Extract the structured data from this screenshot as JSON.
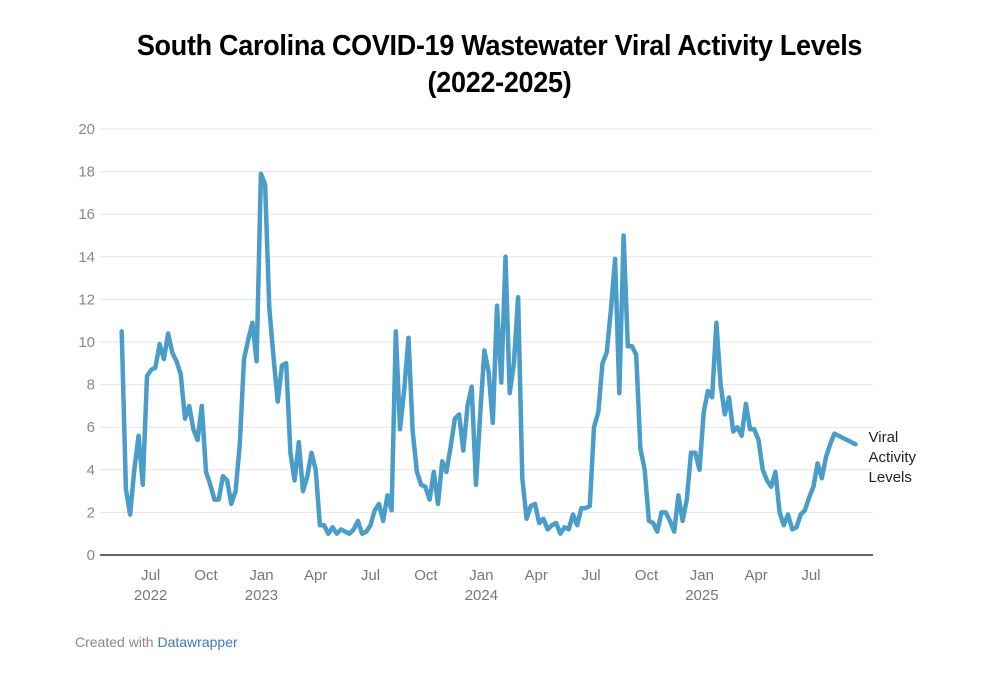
{
  "chart_data": {
    "type": "line",
    "title": "South Carolina COVID-19  Wastewater Viral Activity Levels",
    "subtitle": "(2022-2025)",
    "xlabel": "",
    "ylabel": "",
    "ylim": [
      0,
      20
    ],
    "yticks": [
      0,
      2,
      4,
      6,
      8,
      10,
      12,
      14,
      16,
      18,
      20
    ],
    "grid": true,
    "legend": "right, direct label at line end",
    "line_color": "#4a9cc9",
    "xticks": [
      {
        "date": "2022-07-01",
        "month": "Jul",
        "year": "2022"
      },
      {
        "date": "2022-10-01",
        "month": "Oct",
        "year": ""
      },
      {
        "date": "2023-01-01",
        "month": "Jan",
        "year": "2023"
      },
      {
        "date": "2023-04-01",
        "month": "Apr",
        "year": ""
      },
      {
        "date": "2023-07-01",
        "month": "Jul",
        "year": ""
      },
      {
        "date": "2023-10-01",
        "month": "Oct",
        "year": ""
      },
      {
        "date": "2024-01-01",
        "month": "Jan",
        "year": "2024"
      },
      {
        "date": "2024-04-01",
        "month": "Apr",
        "year": ""
      },
      {
        "date": "2024-07-01",
        "month": "Jul",
        "year": ""
      },
      {
        "date": "2024-10-01",
        "month": "Oct",
        "year": ""
      },
      {
        "date": "2025-01-01",
        "month": "Jan",
        "year": "2025"
      },
      {
        "date": "2025-04-01",
        "month": "Apr",
        "year": ""
      },
      {
        "date": "2025-07-01",
        "month": "Jul",
        "year": ""
      }
    ],
    "xrange": [
      "2022-04-08",
      "2025-10-12"
    ],
    "series": [
      {
        "name": "Viral Activity Levels",
        "label_lines": [
          "Viral",
          "Activity",
          "Levels"
        ],
        "points": [
          [
            "2022-05-14",
            10.5
          ],
          [
            "2022-05-21",
            3.1
          ],
          [
            "2022-05-28",
            1.9
          ],
          [
            "2022-06-04",
            4.0
          ],
          [
            "2022-06-11",
            5.6
          ],
          [
            "2022-06-18",
            3.3
          ],
          [
            "2022-06-25",
            8.4
          ],
          [
            "2022-07-02",
            8.7
          ],
          [
            "2022-07-09",
            8.8
          ],
          [
            "2022-07-16",
            9.9
          ],
          [
            "2022-07-23",
            9.2
          ],
          [
            "2022-07-30",
            10.4
          ],
          [
            "2022-08-06",
            9.5
          ],
          [
            "2022-08-13",
            9.1
          ],
          [
            "2022-08-20",
            8.5
          ],
          [
            "2022-08-27",
            6.4
          ],
          [
            "2022-09-03",
            7.0
          ],
          [
            "2022-09-10",
            5.9
          ],
          [
            "2022-09-17",
            5.4
          ],
          [
            "2022-09-24",
            7.0
          ],
          [
            "2022-10-01",
            3.9
          ],
          [
            "2022-10-08",
            3.3
          ],
          [
            "2022-10-15",
            2.6
          ],
          [
            "2022-10-22",
            2.6
          ],
          [
            "2022-10-29",
            3.7
          ],
          [
            "2022-11-05",
            3.5
          ],
          [
            "2022-11-12",
            2.4
          ],
          [
            "2022-11-19",
            3.0
          ],
          [
            "2022-11-26",
            5.2
          ],
          [
            "2022-12-03",
            9.2
          ],
          [
            "2022-12-10",
            10.1
          ],
          [
            "2022-12-17",
            10.9
          ],
          [
            "2022-12-24",
            9.1
          ],
          [
            "2022-12-31",
            17.9
          ],
          [
            "2023-01-07",
            17.4
          ],
          [
            "2023-01-14",
            11.6
          ],
          [
            "2023-01-21",
            9.3
          ],
          [
            "2023-01-28",
            7.2
          ],
          [
            "2023-02-04",
            8.9
          ],
          [
            "2023-02-11",
            9.0
          ],
          [
            "2023-02-18",
            4.8
          ],
          [
            "2023-02-25",
            3.5
          ],
          [
            "2023-03-04",
            5.3
          ],
          [
            "2023-03-11",
            3.0
          ],
          [
            "2023-03-18",
            3.7
          ],
          [
            "2023-03-25",
            4.8
          ],
          [
            "2023-04-01",
            4.0
          ],
          [
            "2023-04-08",
            1.4
          ],
          [
            "2023-04-15",
            1.4
          ],
          [
            "2023-04-22",
            1.0
          ],
          [
            "2023-04-29",
            1.3
          ],
          [
            "2023-05-06",
            1.0
          ],
          [
            "2023-05-13",
            1.2
          ],
          [
            "2023-05-20",
            1.1
          ],
          [
            "2023-05-27",
            1.0
          ],
          [
            "2023-06-03",
            1.2
          ],
          [
            "2023-06-10",
            1.6
          ],
          [
            "2023-06-17",
            1.0
          ],
          [
            "2023-06-24",
            1.1
          ],
          [
            "2023-07-01",
            1.4
          ],
          [
            "2023-07-08",
            2.1
          ],
          [
            "2023-07-15",
            2.4
          ],
          [
            "2023-07-22",
            1.6
          ],
          [
            "2023-07-29",
            2.8
          ],
          [
            "2023-08-05",
            2.1
          ],
          [
            "2023-08-12",
            10.5
          ],
          [
            "2023-08-19",
            5.9
          ],
          [
            "2023-08-26",
            7.8
          ],
          [
            "2023-09-02",
            10.2
          ],
          [
            "2023-09-09",
            5.8
          ],
          [
            "2023-09-16",
            3.9
          ],
          [
            "2023-09-23",
            3.3
          ],
          [
            "2023-09-30",
            3.2
          ],
          [
            "2023-10-07",
            2.6
          ],
          [
            "2023-10-14",
            3.9
          ],
          [
            "2023-10-21",
            2.4
          ],
          [
            "2023-10-28",
            4.4
          ],
          [
            "2023-11-04",
            3.9
          ],
          [
            "2023-11-11",
            5.1
          ],
          [
            "2023-11-18",
            6.4
          ],
          [
            "2023-11-25",
            6.6
          ],
          [
            "2023-12-02",
            4.9
          ],
          [
            "2023-12-09",
            7.0
          ],
          [
            "2023-12-16",
            7.9
          ],
          [
            "2023-12-23",
            3.3
          ],
          [
            "2023-12-30",
            6.6
          ],
          [
            "2024-01-06",
            9.6
          ],
          [
            "2024-01-13",
            8.6
          ],
          [
            "2024-01-20",
            6.2
          ],
          [
            "2024-01-27",
            11.7
          ],
          [
            "2024-02-03",
            8.1
          ],
          [
            "2024-02-10",
            14.0
          ],
          [
            "2024-02-17",
            7.6
          ],
          [
            "2024-02-24",
            9.0
          ],
          [
            "2024-03-02",
            12.1
          ],
          [
            "2024-03-09",
            3.6
          ],
          [
            "2024-03-16",
            1.7
          ],
          [
            "2024-03-23",
            2.3
          ],
          [
            "2024-03-30",
            2.4
          ],
          [
            "2024-04-06",
            1.5
          ],
          [
            "2024-04-13",
            1.7
          ],
          [
            "2024-04-20",
            1.2
          ],
          [
            "2024-04-27",
            1.4
          ],
          [
            "2024-05-04",
            1.5
          ],
          [
            "2024-05-11",
            1.0
          ],
          [
            "2024-05-18",
            1.3
          ],
          [
            "2024-05-25",
            1.2
          ],
          [
            "2024-06-01",
            1.9
          ],
          [
            "2024-06-08",
            1.4
          ],
          [
            "2024-06-15",
            2.2
          ],
          [
            "2024-06-22",
            2.2
          ],
          [
            "2024-06-29",
            2.3
          ],
          [
            "2024-07-06",
            6.0
          ],
          [
            "2024-07-13",
            6.7
          ],
          [
            "2024-07-20",
            9.0
          ],
          [
            "2024-07-27",
            9.5
          ],
          [
            "2024-08-03",
            11.5
          ],
          [
            "2024-08-10",
            13.9
          ],
          [
            "2024-08-17",
            7.6
          ],
          [
            "2024-08-24",
            15.0
          ],
          [
            "2024-08-31",
            9.8
          ],
          [
            "2024-09-07",
            9.8
          ],
          [
            "2024-09-14",
            9.4
          ],
          [
            "2024-09-21",
            5.0
          ],
          [
            "2024-09-28",
            4.0
          ],
          [
            "2024-10-05",
            1.6
          ],
          [
            "2024-10-12",
            1.5
          ],
          [
            "2024-10-19",
            1.1
          ],
          [
            "2024-10-26",
            2.0
          ],
          [
            "2024-11-02",
            2.0
          ],
          [
            "2024-11-09",
            1.6
          ],
          [
            "2024-11-16",
            1.1
          ],
          [
            "2024-11-23",
            2.8
          ],
          [
            "2024-11-30",
            1.6
          ],
          [
            "2024-12-07",
            2.6
          ],
          [
            "2024-12-14",
            4.8
          ],
          [
            "2024-12-21",
            4.8
          ],
          [
            "2024-12-28",
            4.0
          ],
          [
            "2025-01-04",
            6.7
          ],
          [
            "2025-01-11",
            7.7
          ],
          [
            "2025-01-18",
            7.4
          ],
          [
            "2025-01-25",
            10.9
          ],
          [
            "2025-02-01",
            8.0
          ],
          [
            "2025-02-08",
            6.6
          ],
          [
            "2025-02-15",
            7.4
          ],
          [
            "2025-02-22",
            5.8
          ],
          [
            "2025-03-01",
            6.0
          ],
          [
            "2025-03-08",
            5.6
          ],
          [
            "2025-03-15",
            7.1
          ],
          [
            "2025-03-22",
            5.9
          ],
          [
            "2025-03-29",
            5.9
          ],
          [
            "2025-04-05",
            5.4
          ],
          [
            "2025-04-12",
            4.0
          ],
          [
            "2025-04-19",
            3.5
          ],
          [
            "2025-04-26",
            3.2
          ],
          [
            "2025-05-03",
            3.9
          ],
          [
            "2025-05-10",
            2.0
          ],
          [
            "2025-05-17",
            1.4
          ],
          [
            "2025-05-24",
            1.9
          ],
          [
            "2025-05-31",
            1.2
          ],
          [
            "2025-06-07",
            1.3
          ],
          [
            "2025-06-14",
            1.9
          ],
          [
            "2025-06-21",
            2.1
          ],
          [
            "2025-06-28",
            2.7
          ],
          [
            "2025-07-05",
            3.2
          ],
          [
            "2025-07-12",
            4.3
          ],
          [
            "2025-07-19",
            3.6
          ],
          [
            "2025-07-26",
            4.6
          ],
          [
            "2025-08-02",
            5.2
          ],
          [
            "2025-08-09",
            5.7
          ],
          [
            "2025-09-13",
            5.2
          ]
        ]
      }
    ]
  },
  "footer": {
    "prefix": "Created with",
    "link": "Datawrapper"
  }
}
